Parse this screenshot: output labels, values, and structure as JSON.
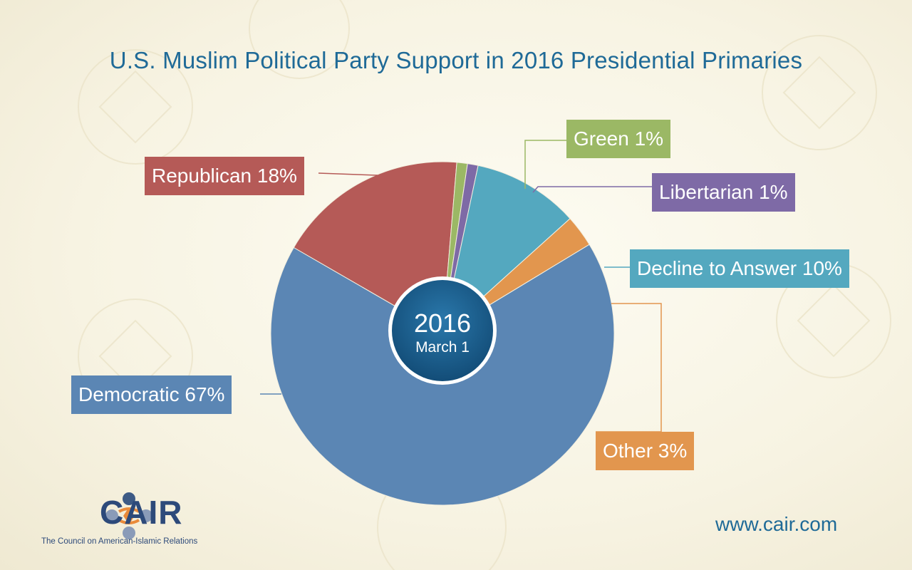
{
  "chart_data": {
    "type": "pie",
    "title": "U.S. Muslim Political Party Support in 2016 Presidential Primaries",
    "center": {
      "year": "2016",
      "date": "March 1"
    },
    "slices": [
      {
        "name": "Republican",
        "value": 18,
        "label": "Republican 18%",
        "color": "#b55a57"
      },
      {
        "name": "Green",
        "value": 1,
        "label": "Green 1%",
        "color": "#9bb865"
      },
      {
        "name": "Libertarian",
        "value": 1,
        "label": "Libertarian 1%",
        "color": "#7e6aa6"
      },
      {
        "name": "Decline to Answer",
        "value": 10,
        "label": "Decline to Answer 10%",
        "color": "#54a8bf"
      },
      {
        "name": "Other",
        "value": 3,
        "label": "Other 3%",
        "color": "#e2964e"
      },
      {
        "name": "Democratic",
        "value": 67,
        "label": "Democratic 67%",
        "color": "#5b86b4"
      }
    ]
  },
  "branding": {
    "logo_text": "CAIR",
    "logo_subtitle": "The Council on American-Islamic Relations",
    "website": "www.cair.com"
  },
  "colors": {
    "title": "#1f6a97",
    "center_circle": "#1c5f8e",
    "logo": "#2d4a7a"
  }
}
